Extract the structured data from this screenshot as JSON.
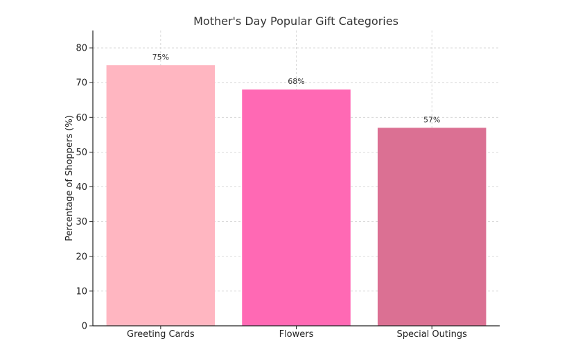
{
  "chart_data": {
    "type": "bar",
    "title": "Mother's Day Popular Gift Categories",
    "xlabel": "",
    "ylabel": "Percentage of Shoppers (%)",
    "categories": [
      "Greeting Cards",
      "Flowers",
      "Special Outings"
    ],
    "values": [
      75,
      68,
      57
    ],
    "data_labels": [
      "75%",
      "68%",
      "57%"
    ],
    "colors": [
      "#ffb6c1",
      "#ff69b4",
      "#db7093"
    ],
    "ylim": [
      0,
      85
    ],
    "yticks": [
      0,
      10,
      20,
      30,
      40,
      50,
      60,
      70,
      80
    ],
    "grid": true,
    "legend": "none"
  }
}
